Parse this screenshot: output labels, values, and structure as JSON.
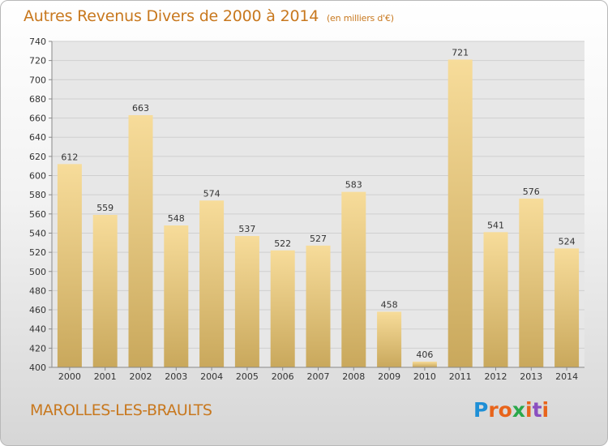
{
  "header": {
    "title": "Autres Revenus Divers de 2000 à 2014",
    "subtitle": "(en milliers d'€)"
  },
  "footer": {
    "town": "MAROLLES-LES-BRAULTS",
    "logo_letters": [
      "P",
      "r",
      "o",
      "x",
      "i",
      "t",
      "i"
    ],
    "logo_colors": [
      "#1e8fd6",
      "#e8641b",
      "#e8641b",
      "#2aa84a",
      "#e8641b",
      "#8a4fc0",
      "#e8641b"
    ]
  },
  "chart_data": {
    "type": "bar",
    "title": "Autres Revenus Divers de 2000 à 2014",
    "subtitle": "(en milliers d'€)",
    "categories": [
      "2000",
      "2001",
      "2002",
      "2003",
      "2004",
      "2005",
      "2006",
      "2007",
      "2008",
      "2009",
      "2010",
      "2011",
      "2012",
      "2013",
      "2014"
    ],
    "values": [
      612,
      559,
      663,
      548,
      574,
      537,
      522,
      527,
      583,
      458,
      406,
      721,
      541,
      576,
      524
    ],
    "ylim": [
      400,
      740
    ],
    "yticks": [
      400,
      420,
      440,
      460,
      480,
      500,
      520,
      540,
      560,
      580,
      600,
      620,
      640,
      660,
      680,
      700,
      720,
      740
    ],
    "grid": true,
    "colors": {
      "bar_top": "#f7dc9a",
      "bar_bottom": "#c9a85c",
      "grid": "#cfcfcf"
    }
  }
}
